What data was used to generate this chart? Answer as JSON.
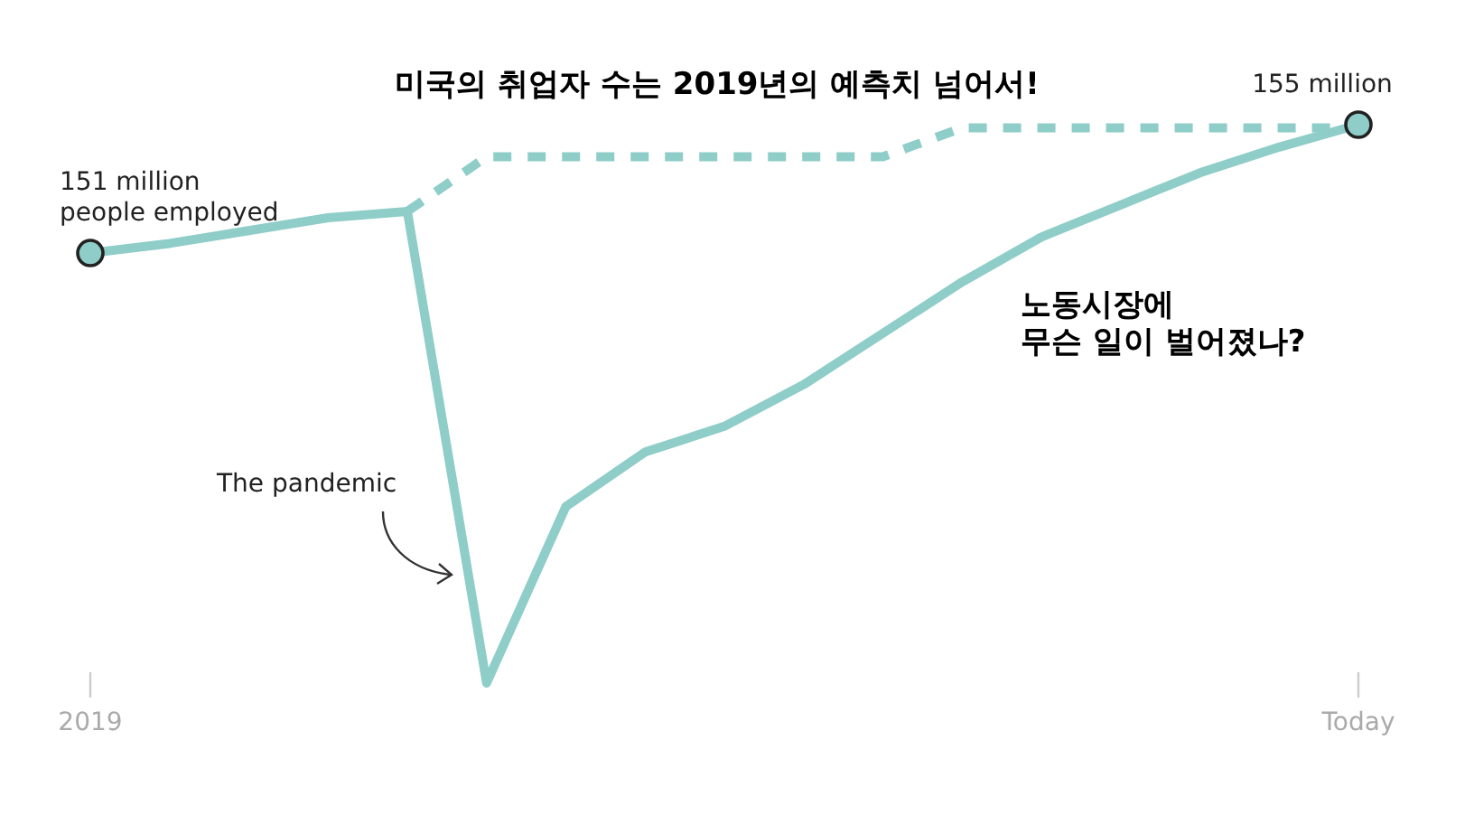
{
  "chart_data": {
    "type": "line",
    "title": "미국의 취업자 수는 2019년의 예측치 넘어서!",
    "categories": [
      "2019",
      null,
      null,
      null,
      null,
      null,
      null,
      null,
      null,
      null,
      null,
      null,
      null,
      null,
      null,
      null,
      "Today"
    ],
    "series": [
      {
        "color": "#8ecdc8",
        "line_style": "solid",
        "values": [
          151,
          151.3,
          151.7,
          152.1,
          152.3,
          137.6,
          143.1,
          144.8,
          145.6,
          146.9,
          148.5,
          150.1,
          151.5,
          152.5,
          153.5,
          154.3,
          155
        ],
        "value_labels": [
          "151 million\npeople employed",
          null,
          null,
          null,
          null,
          null,
          null,
          null,
          null,
          null,
          null,
          null,
          null,
          null,
          null,
          null,
          "155 million"
        ]
      },
      {
        "color": "#8ecdc8",
        "line_style": "dashed",
        "values": [
          null,
          null,
          null,
          null,
          152.3,
          154.0,
          154.0,
          154.0,
          154.0,
          154.0,
          154.0,
          154.9,
          154.9,
          154.9,
          154.9,
          154.9,
          154.9
        ]
      }
    ],
    "annotations": [
      "The pandemic",
      "노동시장에\n무슨 일이 벌어졌나?"
    ]
  }
}
